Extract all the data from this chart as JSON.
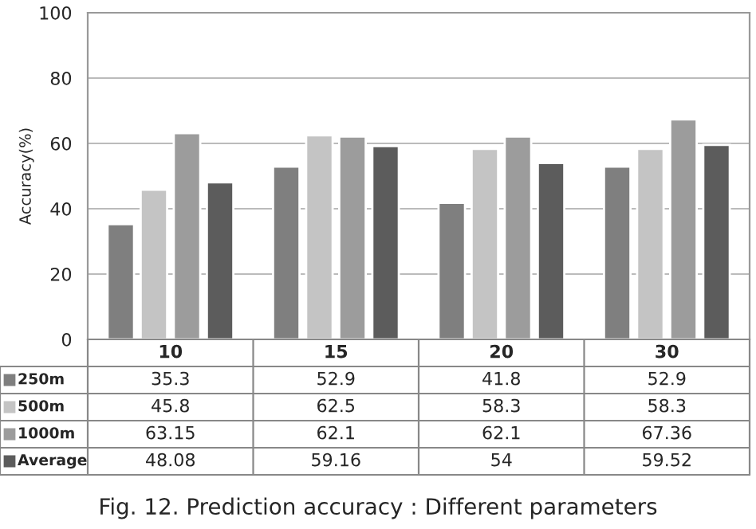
{
  "chart_data": {
    "type": "bar",
    "categories": [
      "10",
      "15",
      "20",
      "30"
    ],
    "series": [
      {
        "name": "250m",
        "color": "#7f7f7f",
        "values": [
          35.3,
          52.9,
          41.8,
          52.9
        ]
      },
      {
        "name": "500m",
        "color": "#c4c4c4",
        "values": [
          45.8,
          62.5,
          58.3,
          58.3
        ]
      },
      {
        "name": "1000m",
        "color": "#9c9c9c",
        "values": [
          63.15,
          62.1,
          62.1,
          67.36
        ]
      },
      {
        "name": "Average",
        "color": "#5c5c5c",
        "values": [
          48.08,
          59.16,
          54,
          59.52
        ]
      }
    ],
    "ylabel": "Accuracy(%)",
    "ylim": [
      0,
      100
    ],
    "yticks": [
      0,
      20,
      40,
      60,
      80,
      100
    ],
    "grid": "y",
    "legend": "bottom left",
    "data_labels": true,
    "annotations": [
      "Fig. 12. Prediction accuracy : Different parameters"
    ]
  }
}
